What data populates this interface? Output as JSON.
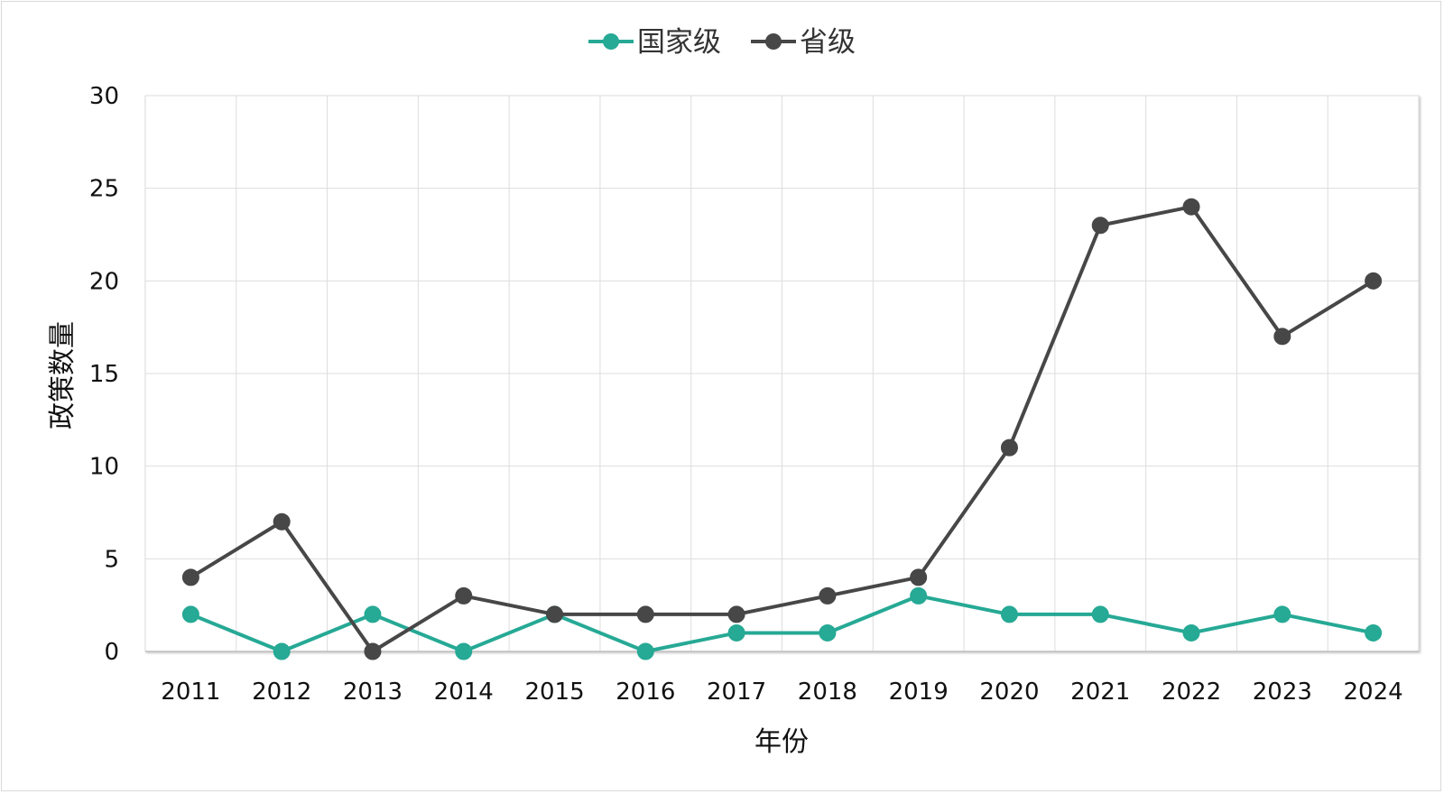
{
  "chart_data": {
    "type": "line",
    "title": "",
    "xlabel": "年份",
    "ylabel": "政策数量",
    "categories": [
      "2011",
      "2012",
      "2013",
      "2014",
      "2015",
      "2016",
      "2017",
      "2018",
      "2019",
      "2020",
      "2021",
      "2022",
      "2023",
      "2024"
    ],
    "ylim": [
      0,
      30
    ],
    "yticks": [
      "0",
      "5",
      "10",
      "15",
      "20",
      "25",
      "30"
    ],
    "grid": true,
    "legend_position": "top-center",
    "series": [
      {
        "name": "国家级",
        "color": "#26a995",
        "values": [
          2,
          0,
          2,
          0,
          2,
          0,
          1,
          1,
          3,
          2,
          2,
          1,
          2,
          1
        ]
      },
      {
        "name": "省级",
        "color": "#474747",
        "values": [
          4,
          7,
          0,
          3,
          2,
          2,
          2,
          3,
          4,
          11,
          23,
          24,
          17,
          20
        ]
      }
    ]
  }
}
